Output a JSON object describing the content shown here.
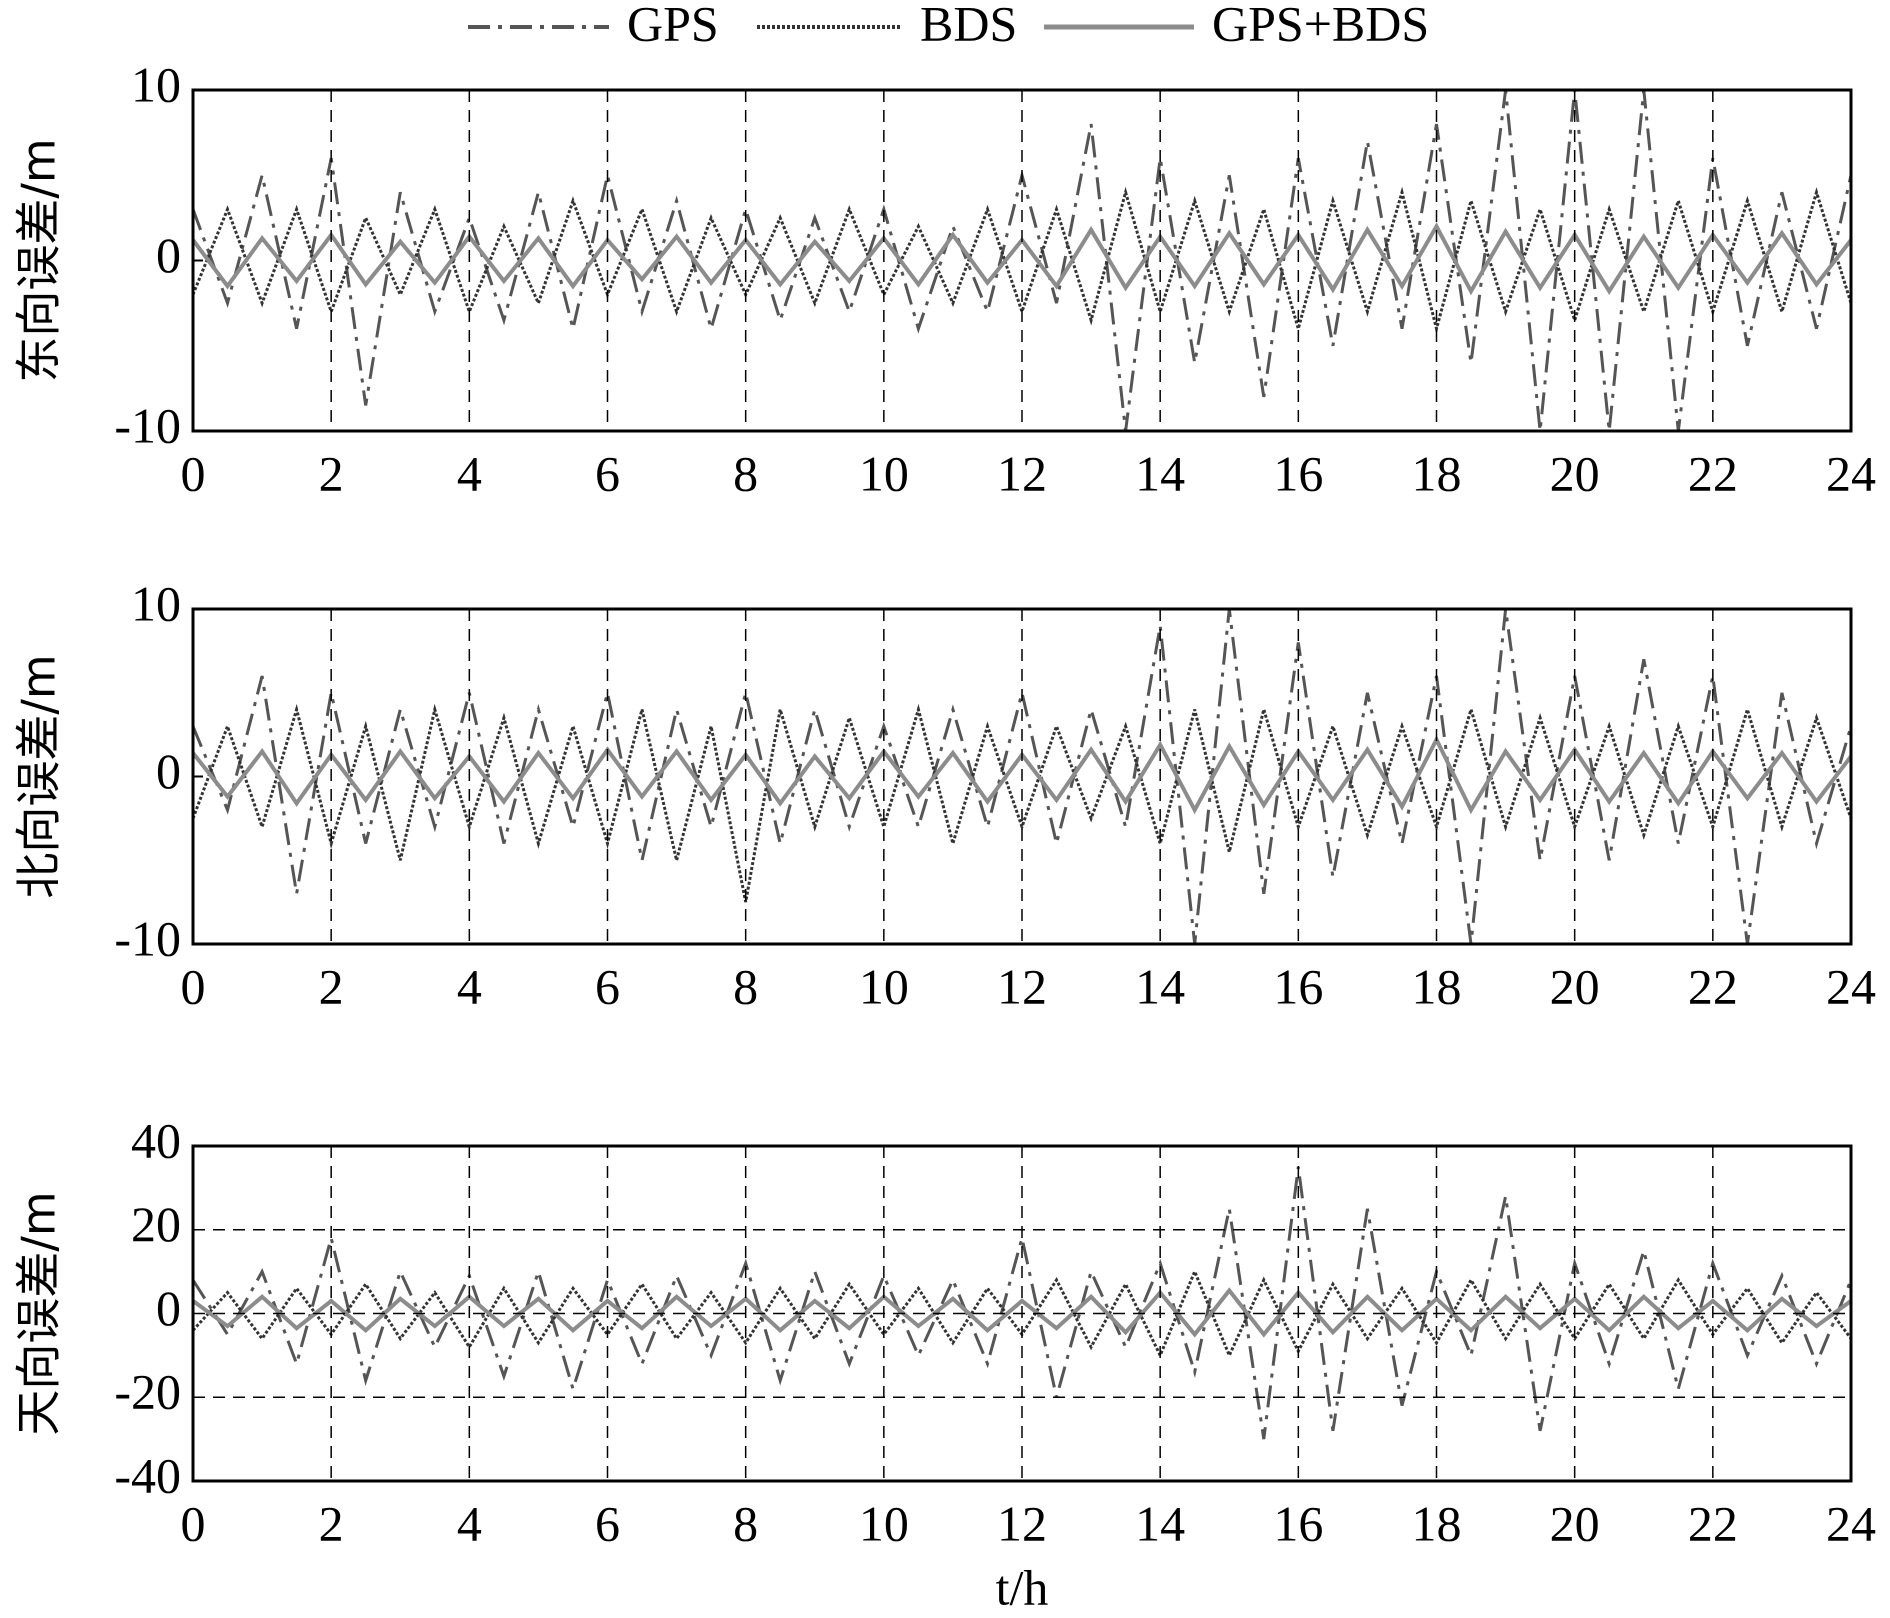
{
  "chart_data": [
    {
      "type": "line",
      "y_label": "东向误差/m",
      "ylim": [
        -10,
        10
      ],
      "yticks": [
        -10,
        0,
        10
      ],
      "xlim": [
        0,
        24
      ],
      "xticks": [
        0,
        2,
        4,
        6,
        8,
        10,
        12,
        14,
        16,
        18,
        20,
        22,
        24
      ],
      "grid": "x",
      "x": [
        0,
        0.5,
        1,
        1.5,
        2,
        2.5,
        3,
        3.5,
        4,
        4.5,
        5,
        5.5,
        6,
        6.5,
        7,
        7.5,
        8,
        8.5,
        9,
        9.5,
        10,
        10.5,
        11,
        11.5,
        12,
        12.5,
        13,
        13.5,
        14,
        14.5,
        15,
        15.5,
        16,
        16.5,
        17,
        17.5,
        18,
        18.5,
        19,
        19.5,
        20,
        20.5,
        21,
        21.5,
        22,
        22.5,
        23,
        23.5,
        24
      ],
      "series": [
        {
          "name": "GPS",
          "color": "#555555",
          "dash": "dashdot",
          "values": [
            3,
            -2.5,
            5,
            -4,
            6,
            -8.5,
            4,
            -3,
            2.5,
            -3.5,
            4,
            -4,
            5,
            -3,
            3.5,
            -4,
            3,
            -3.5,
            2.5,
            -3,
            3,
            -4,
            2,
            -3,
            5,
            -2.5,
            8,
            -10,
            6,
            -6,
            5,
            -8,
            6,
            -5,
            7,
            -4,
            8,
            -6,
            10,
            -10,
            10,
            -10,
            10,
            -10,
            6,
            -5,
            4,
            -4,
            5
          ]
        },
        {
          "name": "BDS",
          "color": "#333333",
          "dash": "dotted",
          "values": [
            -2,
            3,
            -2.5,
            3,
            -3,
            2.5,
            -2,
            3,
            -3,
            2,
            -2.5,
            3.5,
            -2,
            3,
            -3,
            2.5,
            -2,
            2.5,
            -2.5,
            3,
            -2,
            2,
            -2.5,
            3,
            -3,
            3,
            -3.5,
            4,
            -3,
            3.5,
            -3,
            3,
            -4,
            3.5,
            -3,
            4,
            -4,
            3.5,
            -3,
            3,
            -3.5,
            3,
            -3,
            3.5,
            -3,
            3.5,
            -3,
            4,
            -2.5
          ]
        },
        {
          "name": "GPS+BDS",
          "color": "#8c8c8c",
          "dash": "solid",
          "values": [
            1.2,
            -1.5,
            1.3,
            -1.2,
            1.5,
            -1.4,
            1.1,
            -1.3,
            1.4,
            -1.2,
            1.3,
            -1.5,
            1.2,
            -1.1,
            1.4,
            -1.3,
            1.2,
            -1.4,
            1.1,
            -1.2,
            1.3,
            -1.4,
            1.5,
            -1.3,
            1.2,
            -1.5,
            1.8,
            -1.6,
            1.4,
            -1.5,
            1.6,
            -1.4,
            1.5,
            -1.7,
            1.8,
            -1.5,
            2,
            -1.8,
            1.7,
            -1.6,
            1.5,
            -1.8,
            1.4,
            -1.6,
            1.5,
            -1.3,
            1.6,
            -1.4,
            1.2
          ]
        }
      ]
    },
    {
      "type": "line",
      "y_label": "北向误差/m",
      "ylim": [
        -10,
        10
      ],
      "yticks": [
        -10,
        0,
        10
      ],
      "xlim": [
        0,
        24
      ],
      "xticks": [
        0,
        2,
        4,
        6,
        8,
        10,
        12,
        14,
        16,
        18,
        20,
        22,
        24
      ],
      "grid": "x",
      "x": [
        0,
        0.5,
        1,
        1.5,
        2,
        2.5,
        3,
        3.5,
        4,
        4.5,
        5,
        5.5,
        6,
        6.5,
        7,
        7.5,
        8,
        8.5,
        9,
        9.5,
        10,
        10.5,
        11,
        11.5,
        12,
        12.5,
        13,
        13.5,
        14,
        14.5,
        15,
        15.5,
        16,
        16.5,
        17,
        17.5,
        18,
        18.5,
        19,
        19.5,
        20,
        20.5,
        21,
        21.5,
        22,
        22.5,
        23,
        23.5,
        24
      ],
      "series": [
        {
          "color": "#555555",
          "dash": "dashdot",
          "values": [
            3,
            -2,
            6,
            -7,
            5,
            -4,
            4,
            -3,
            5,
            -4,
            4,
            -3,
            5,
            -5,
            4,
            -3,
            5,
            -4,
            4,
            -3,
            3,
            -3,
            4,
            -3,
            5,
            -4,
            4,
            -3,
            9,
            -10,
            10,
            -7,
            8,
            -6,
            5,
            -4,
            6,
            -10,
            10,
            -5,
            6,
            -5,
            7,
            -4,
            6,
            -10,
            5,
            -4,
            3
          ]
        },
        {
          "color": "#333333",
          "dash": "dotted",
          "values": [
            -2.5,
            3,
            -3,
            4,
            -4,
            3,
            -5,
            4,
            -3,
            3.5,
            -4,
            3,
            -4,
            4,
            -5,
            3,
            -7.5,
            4,
            -3,
            3.5,
            -3,
            4,
            -4,
            3,
            -3,
            3,
            -2.5,
            3,
            -4,
            4,
            -4.5,
            4,
            -3,
            3,
            -3.5,
            3,
            -3,
            4,
            -3,
            3.5,
            -3,
            3,
            -3.5,
            3,
            -3,
            4,
            -3,
            3.5,
            -2.5
          ]
        },
        {
          "color": "#8c8c8c",
          "dash": "solid",
          "values": [
            1.4,
            -1.2,
            1.5,
            -1.6,
            1.3,
            -1.4,
            1.5,
            -1.3,
            1.2,
            -1.5,
            1.4,
            -1.3,
            1.6,
            -1.2,
            1.5,
            -1.4,
            1.3,
            -1.6,
            1.2,
            -1.3,
            1.5,
            -1.2,
            1.4,
            -1.5,
            1.3,
            -1.4,
            1.6,
            -1.5,
            1.9,
            -2,
            1.8,
            -1.7,
            1.5,
            -1.4,
            1.6,
            -1.8,
            2.2,
            -2,
            1.5,
            -1.4,
            1.6,
            -1.5,
            1.4,
            -1.6,
            1.5,
            -1.3,
            1.4,
            -1.5,
            1.2
          ]
        }
      ]
    },
    {
      "type": "line",
      "y_label": "天向误差/m",
      "x_label": "t/h",
      "ylim": [
        -40,
        40
      ],
      "yticks": [
        -40,
        -20,
        0,
        20,
        40
      ],
      "xlim": [
        0,
        24
      ],
      "xticks": [
        0,
        2,
        4,
        6,
        8,
        10,
        12,
        14,
        16,
        18,
        20,
        22,
        24
      ],
      "grid": "both",
      "x": [
        0,
        0.5,
        1,
        1.5,
        2,
        2.5,
        3,
        3.5,
        4,
        4.5,
        5,
        5.5,
        6,
        6.5,
        7,
        7.5,
        8,
        8.5,
        9,
        9.5,
        10,
        10.5,
        11,
        11.5,
        12,
        12.5,
        13,
        13.5,
        14,
        14.5,
        15,
        15.5,
        16,
        16.5,
        17,
        17.5,
        18,
        18.5,
        19,
        19.5,
        20,
        20.5,
        21,
        21.5,
        22,
        22.5,
        23,
        23.5,
        24
      ],
      "series": [
        {
          "color": "#555555",
          "dash": "dashdot",
          "values": [
            8,
            -5,
            10,
            -12,
            18,
            -16,
            10,
            -8,
            9,
            -15,
            10,
            -18,
            8,
            -12,
            9,
            -10,
            12,
            -16,
            10,
            -12,
            9,
            -10,
            8,
            -12,
            18,
            -20,
            10,
            -8,
            12,
            -14,
            25,
            -30,
            35,
            -28,
            25,
            -22,
            10,
            -10,
            28,
            -28,
            12,
            -12,
            15,
            -18,
            12,
            -10,
            9,
            -12,
            8
          ]
        },
        {
          "color": "#333333",
          "dash": "dotted",
          "values": [
            -4,
            5,
            -6,
            6,
            -5,
            7,
            -6,
            5,
            -8,
            6,
            -7,
            6,
            -5,
            7,
            -6,
            5,
            -7,
            6,
            -6,
            7,
            -5,
            6,
            -7,
            6,
            -5,
            8,
            -8,
            7,
            -10,
            10,
            -10,
            8,
            -9,
            7,
            -6,
            6,
            -7,
            8,
            -6,
            7,
            -6,
            7,
            -6,
            8,
            -5,
            6,
            -7,
            5,
            -6
          ]
        },
        {
          "color": "#8c8c8c",
          "dash": "solid",
          "values": [
            3,
            -3,
            4,
            -3.5,
            3,
            -4,
            3.5,
            -3,
            4,
            -3,
            3.5,
            -4,
            3,
            -3.5,
            4,
            -3,
            3.5,
            -4,
            3,
            -3.5,
            4,
            -3,
            3.5,
            -4,
            3,
            -3.5,
            4,
            -4.5,
            5,
            -5,
            5.5,
            -5,
            5,
            -4.5,
            4,
            -4,
            3.5,
            -4,
            4,
            -3.5,
            3.5,
            -4,
            4,
            -3.5,
            3,
            -4,
            3.5,
            -3,
            3
          ]
        }
      ]
    }
  ]
}
